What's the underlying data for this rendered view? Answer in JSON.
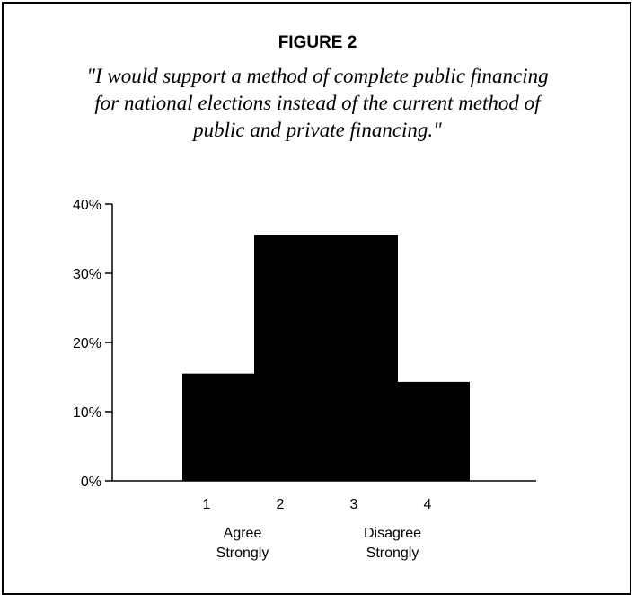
{
  "figure_label": "FIGURE 2",
  "quote_lines": [
    "\"I would support a method of complete public financing",
    "for national elections instead of the current method of",
    "public and private financing.\""
  ],
  "chart_data": {
    "type": "bar",
    "title": "",
    "categories": [
      "1",
      "2",
      "3",
      "4"
    ],
    "values": [
      15.5,
      35.5,
      35.5,
      14.3
    ],
    "ylim": [
      0,
      40
    ],
    "yticks": [
      0,
      10,
      20,
      30,
      40
    ],
    "ytick_labels": [
      "0%",
      "10%",
      "20%",
      "30%",
      "40%"
    ],
    "anchor_labels": {
      "left": [
        "Agree",
        "Strongly"
      ],
      "right": [
        "Disagree",
        "Strongly"
      ]
    },
    "bar_color": "#000000",
    "grid": false,
    "legend": "none"
  }
}
